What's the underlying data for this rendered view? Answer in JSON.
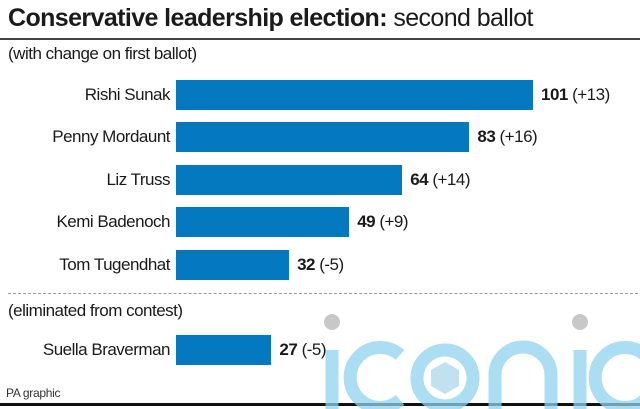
{
  "header": {
    "title_bold": "Conservative leadership election:",
    "title_light": "second ballot",
    "subtitle": "(with change on first ballot)"
  },
  "chart_data": {
    "type": "bar",
    "orientation": "horizontal",
    "title": "Conservative leadership election: second ballot",
    "subtitle": "(with change on first ballot)",
    "categories": [
      "Rishi Sunak",
      "Penny Mordaunt",
      "Liz Truss",
      "Kemi Badenoch",
      "Tom Tugendhat",
      "Suella Braverman"
    ],
    "values": [
      101,
      83,
      64,
      49,
      32,
      27
    ],
    "changes": [
      "(+13)",
      "(+16)",
      "(+14)",
      "(+9)",
      "(-5)",
      "(-5)"
    ],
    "eliminated": [
      false,
      false,
      false,
      false,
      false,
      true
    ],
    "section_label_eliminated": "(eliminated from contest)",
    "bar_color": "#0579bf",
    "grid": false,
    "xlim": [
      0,
      101
    ]
  },
  "footer": {
    "credit": "PA graphic",
    "watermark": "iconic"
  }
}
